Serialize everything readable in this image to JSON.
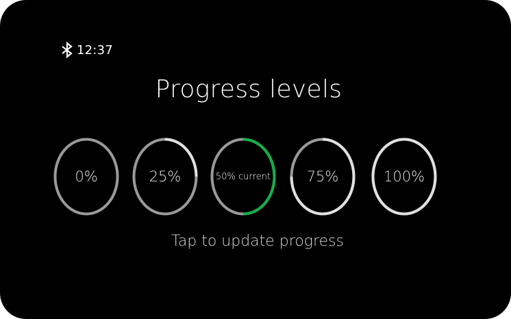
{
  "status_bar": {
    "icon": "bluetooth-icon",
    "time": "12:37"
  },
  "title": "Progress levels",
  "levels": [
    {
      "label": "0%",
      "progress": 0.0,
      "current": false
    },
    {
      "label": "25%",
      "progress": 0.25,
      "current": false
    },
    {
      "label": "50% current",
      "progress": 0.5,
      "current": true
    },
    {
      "label": "75%",
      "progress": 0.75,
      "current": false
    },
    {
      "label": "100%",
      "progress": 1.0,
      "current": false
    }
  ],
  "hint": "Tap to update progress",
  "colors": {
    "background": "#000000",
    "track": "#9a9a9a",
    "fill": "#e0e0e0",
    "current_fill": "#12b04a"
  }
}
